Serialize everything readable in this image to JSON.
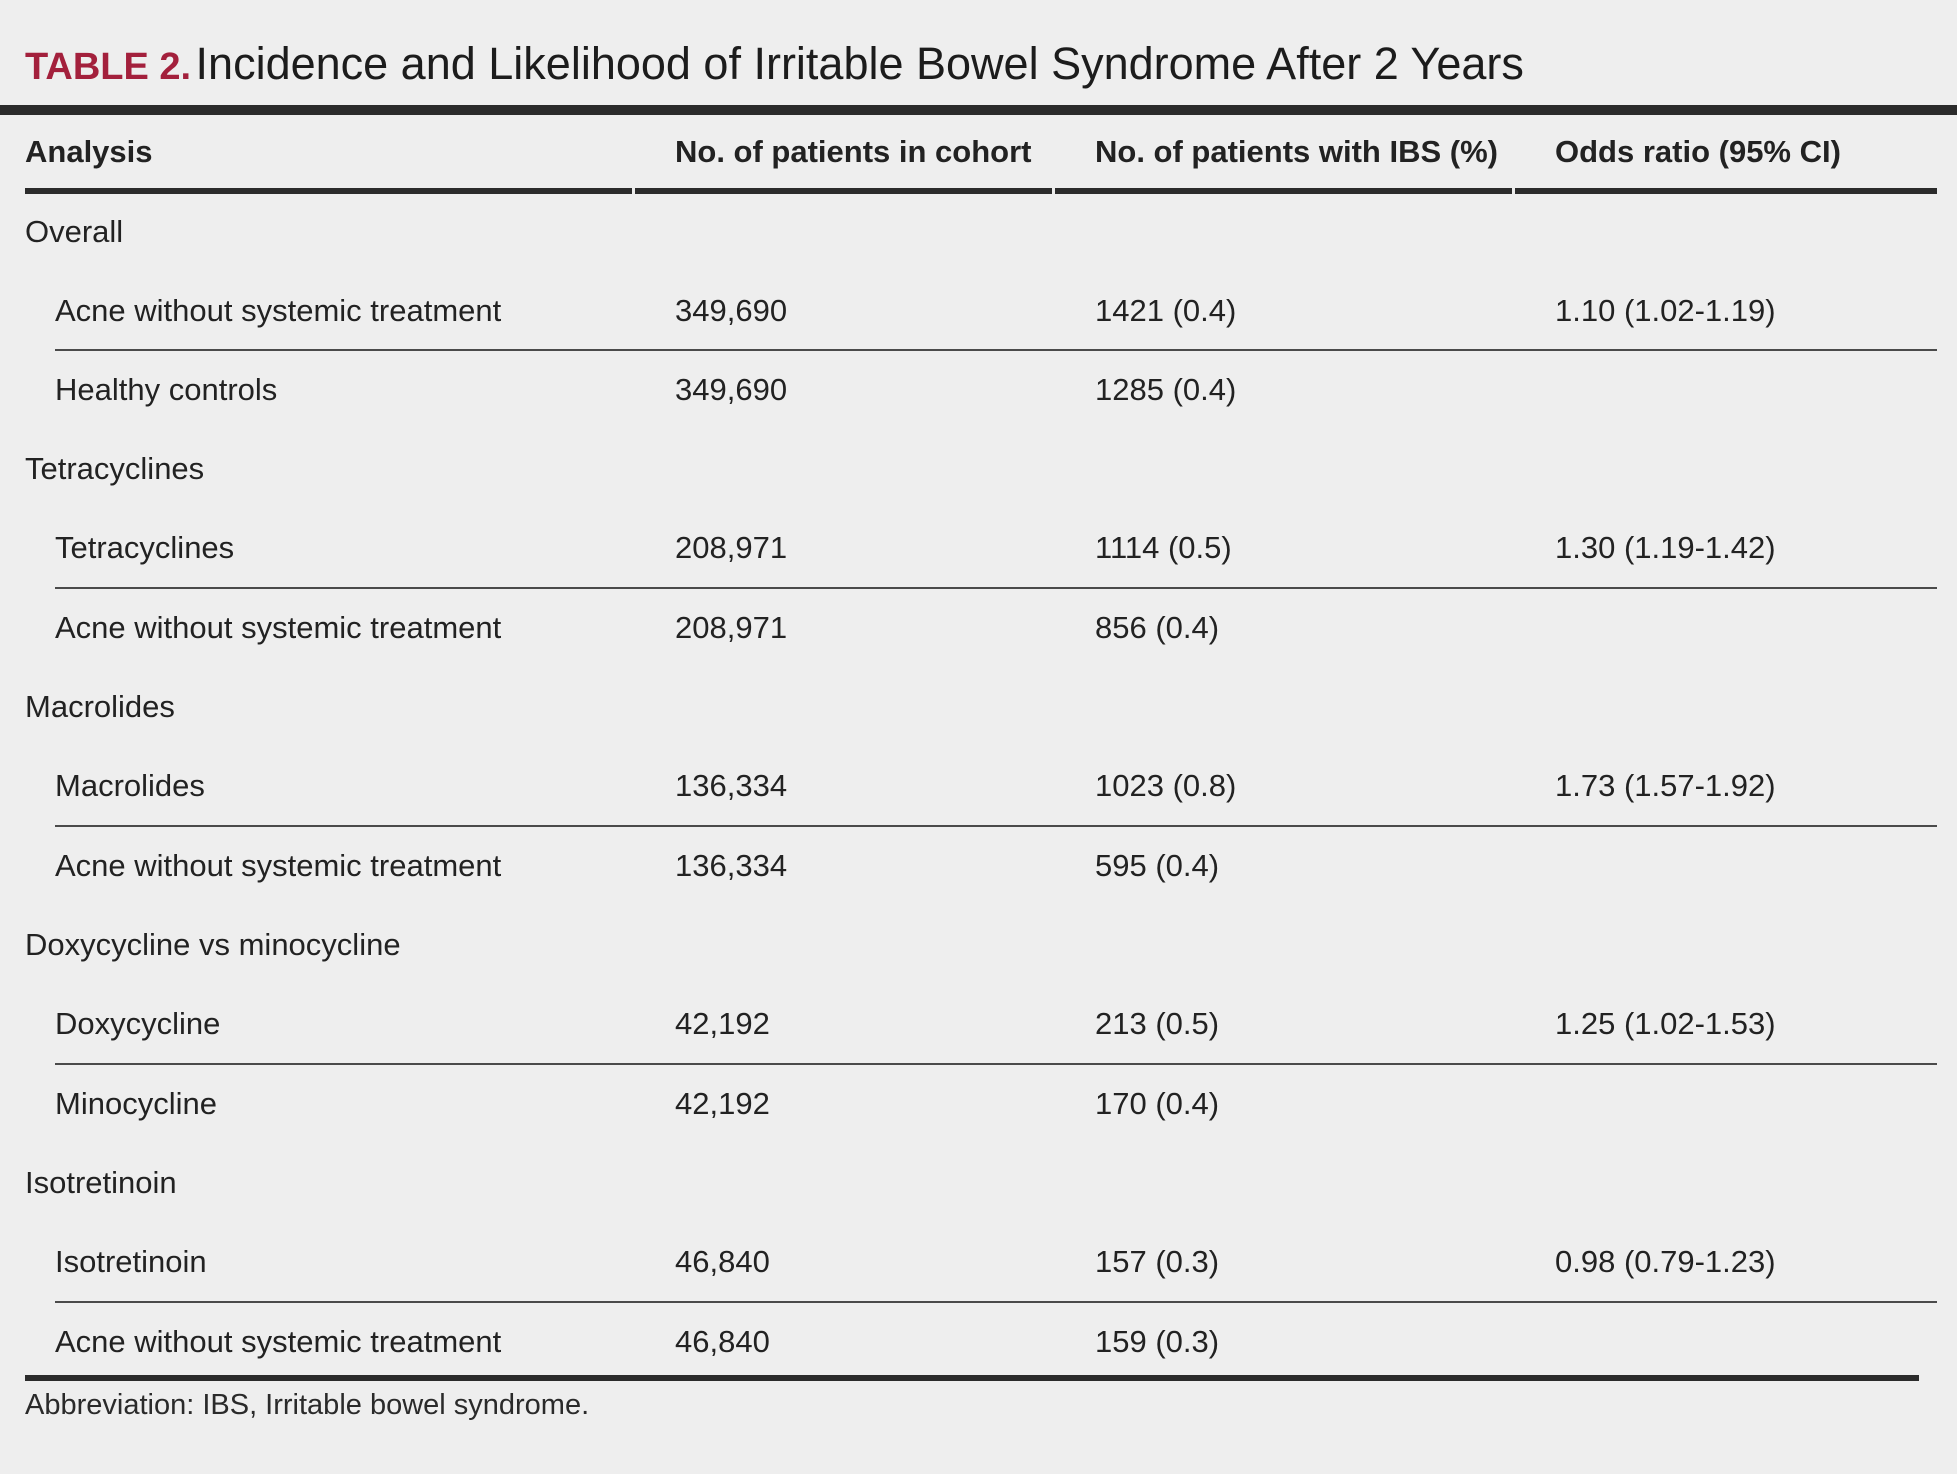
{
  "title": {
    "label": "TABLE 2.",
    "text": "Incidence and Likelihood of Irritable Bowel Syndrome After 2 Years"
  },
  "table": {
    "columns": [
      "Analysis",
      "No. of patients in cohort",
      "No. of patients with IBS (%)",
      "Odds ratio (95% CI)"
    ],
    "groups": [
      {
        "label": "Overall",
        "rows": [
          {
            "analysis": "Acne without systemic treatment",
            "cohort": "349,690",
            "ibs": "1421 (0.4)",
            "odds": "1.10 (1.02-1.19)"
          },
          {
            "analysis": "Healthy controls",
            "cohort": "349,690",
            "ibs": "1285 (0.4)",
            "odds": ""
          }
        ]
      },
      {
        "label": "Tetracyclines",
        "rows": [
          {
            "analysis": "Tetracyclines",
            "cohort": "208,971",
            "ibs": "1114 (0.5)",
            "odds": "1.30 (1.19-1.42)"
          },
          {
            "analysis": "Acne without systemic treatment",
            "cohort": "208,971",
            "ibs": "856 (0.4)",
            "odds": ""
          }
        ]
      },
      {
        "label": "Macrolides",
        "rows": [
          {
            "analysis": "Macrolides",
            "cohort": "136,334",
            "ibs": "1023 (0.8)",
            "odds": "1.73 (1.57-1.92)"
          },
          {
            "analysis": "Acne without systemic treatment",
            "cohort": "136,334",
            "ibs": "595 (0.4)",
            "odds": ""
          }
        ]
      },
      {
        "label": "Doxycycline vs minocycline",
        "rows": [
          {
            "analysis": "Doxycycline",
            "cohort": "42,192",
            "ibs": "213 (0.5)",
            "odds": "1.25 (1.02-1.53)"
          },
          {
            "analysis": "Minocycline",
            "cohort": "42,192",
            "ibs": "170 (0.4)",
            "odds": ""
          }
        ]
      },
      {
        "label": "Isotretinoin",
        "rows": [
          {
            "analysis": "Isotretinoin",
            "cohort": "46,840",
            "ibs": "157 (0.3)",
            "odds": "0.98 (0.79-1.23)"
          },
          {
            "analysis": "Acne without systemic treatment",
            "cohort": "46,840",
            "ibs": "159 (0.3)",
            "odds": ""
          }
        ]
      }
    ]
  },
  "footnote": "Abbreviation: IBS, Irritable bowel syndrome.",
  "colors": {
    "title_label": "#a3203c",
    "rule": "#2b2b2b",
    "background": "#eeeeee"
  }
}
